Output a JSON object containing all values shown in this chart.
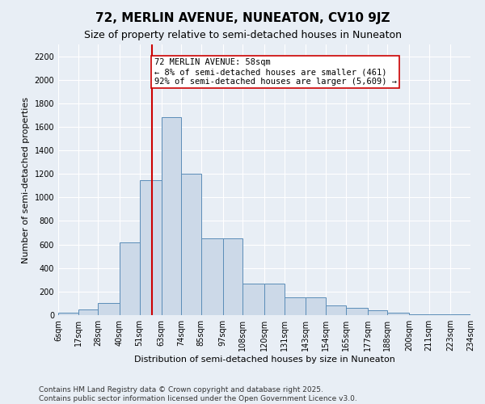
{
  "title": "72, MERLIN AVENUE, NUNEATON, CV10 9JZ",
  "subtitle": "Size of property relative to semi-detached houses in Nuneaton",
  "xlabel": "Distribution of semi-detached houses by size in Nuneaton",
  "ylabel": "Number of semi-detached properties",
  "footer_line1": "Contains HM Land Registry data © Crown copyright and database right 2025.",
  "footer_line2": "Contains public sector information licensed under the Open Government Licence v3.0.",
  "annotation_line1": "72 MERLIN AVENUE: 58sqm",
  "annotation_line2": "← 8% of semi-detached houses are smaller (461)",
  "annotation_line3": "92% of semi-detached houses are larger (5,609) →",
  "property_size": 58,
  "bin_edges": [
    6,
    17,
    28,
    40,
    51,
    63,
    74,
    85,
    97,
    108,
    120,
    131,
    143,
    154,
    165,
    177,
    188,
    200,
    211,
    223,
    234
  ],
  "bin_labels": [
    "6sqm",
    "17sqm",
    "28sqm",
    "40sqm",
    "51sqm",
    "63sqm",
    "74sqm",
    "85sqm",
    "97sqm",
    "108sqm",
    "120sqm",
    "131sqm",
    "143sqm",
    "154sqm",
    "165sqm",
    "177sqm",
    "188sqm",
    "200sqm",
    "211sqm",
    "223sqm",
    "234sqm"
  ],
  "bar_heights": [
    20,
    50,
    100,
    620,
    1150,
    1680,
    1200,
    650,
    650,
    270,
    270,
    150,
    150,
    80,
    60,
    40,
    20,
    10,
    5,
    5
  ],
  "bar_color": "#ccd9e8",
  "bar_edge_color": "#5b8db8",
  "vline_color": "#cc0000",
  "vline_x": 58,
  "ylim": [
    0,
    2300
  ],
  "yticks": [
    0,
    200,
    400,
    600,
    800,
    1000,
    1200,
    1400,
    1600,
    1800,
    2000,
    2200
  ],
  "bg_color": "#e8eef5",
  "plot_bg_color": "#e8eef5",
  "grid_color": "#ffffff",
  "title_fontsize": 11,
  "subtitle_fontsize": 9,
  "axis_label_fontsize": 8,
  "tick_fontsize": 7,
  "footer_fontsize": 6.5,
  "annotation_fontsize": 7.5
}
